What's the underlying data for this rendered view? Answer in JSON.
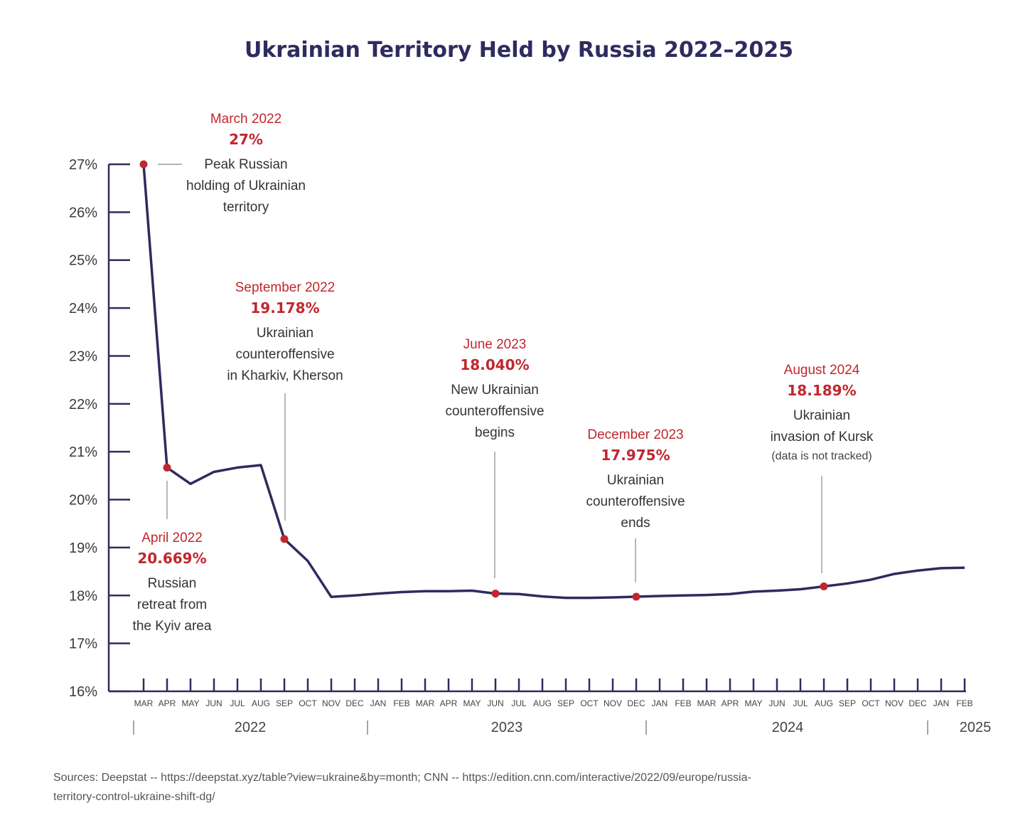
{
  "chart_data": {
    "type": "line",
    "title": "Ukrainian Territory Held by Russia 2022–2025",
    "ylim": [
      16,
      27
    ],
    "y_ticks": [
      "16%",
      "17%",
      "18%",
      "19%",
      "20%",
      "21%",
      "22%",
      "23%",
      "24%",
      "25%",
      "26%",
      "27%"
    ],
    "x_labels": [
      "MAR",
      "APR",
      "MAY",
      "JUN",
      "JUL",
      "AUG",
      "SEP",
      "OCT",
      "NOV",
      "DEC",
      "JAN",
      "FEB",
      "MAR",
      "APR",
      "MAY",
      "JUN",
      "JUL",
      "AUG",
      "SEP",
      "OCT",
      "NOV",
      "DEC",
      "JAN",
      "FEB",
      "MAR",
      "APR",
      "MAY",
      "JUN",
      "JUL",
      "AUG",
      "SEP",
      "OCT",
      "NOV",
      "DEC",
      "JAN",
      "FEB"
    ],
    "years": [
      "2022",
      "2023",
      "2024",
      "2025"
    ],
    "series": [
      {
        "name": "Territory held",
        "color": "#2e2b5f",
        "values": [
          27.0,
          20.669,
          20.33,
          20.58,
          20.67,
          20.72,
          19.178,
          18.72,
          17.97,
          18.0,
          18.04,
          18.07,
          18.09,
          18.09,
          18.1,
          18.04,
          18.03,
          17.98,
          17.95,
          17.95,
          17.96,
          17.975,
          17.99,
          18.0,
          18.01,
          18.03,
          18.08,
          18.1,
          18.13,
          18.189,
          18.25,
          18.33,
          18.45,
          18.52,
          18.57,
          18.58
        ]
      }
    ],
    "highlight_color": "#c0272d",
    "annotations": [
      {
        "index": 0,
        "date": "March 2022",
        "value": "27%",
        "text": [
          "Peak Russian",
          "holding of Ukrainian",
          "territory"
        ]
      },
      {
        "index": 1,
        "date": "April 2022",
        "value": "20.669%",
        "text": [
          "Russian",
          "retreat from",
          "the Kyiv area"
        ]
      },
      {
        "index": 6,
        "date": "September 2022",
        "value": "19.178%",
        "text": [
          "Ukrainian",
          "counteroffensive",
          "in Kharkiv, Kherson"
        ]
      },
      {
        "index": 15,
        "date": "June 2023",
        "value": "18.040%",
        "text": [
          "New Ukrainian",
          "counteroffensive",
          "begins"
        ]
      },
      {
        "index": 21,
        "date": "December 2023",
        "value": "17.975%",
        "text": [
          "Ukrainian",
          "counteroffensive",
          "ends"
        ]
      },
      {
        "index": 29,
        "date": "August 2024",
        "value": "18.189%",
        "text": [
          "Ukrainian",
          "invasion of Kursk"
        ],
        "note": "(data is not tracked)"
      }
    ],
    "source": "Sources: Deepstat -- https://deepstat.xyz/table?view=ukraine&by=month; CNN -- https://edition.cnn.com/interactive/2022/09/europe/russia-territory-control-ukraine-shift-dg/"
  }
}
